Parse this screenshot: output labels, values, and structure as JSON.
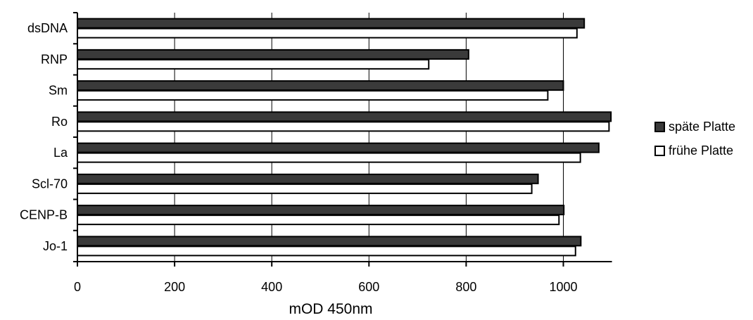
{
  "chart_data": {
    "type": "bar",
    "orientation": "horizontal",
    "categories": [
      "dsDNA",
      "RNP",
      "Sm",
      "Ro",
      "La",
      "Scl-70",
      "CENP-B",
      "Jo-1"
    ],
    "series": [
      {
        "name": "späte Platte",
        "color": "#3a3a3a",
        "values": [
          1043,
          805,
          1000,
          1098,
          1073,
          948,
          1001,
          1036
        ]
      },
      {
        "name": "frühe Platte",
        "color": "#ffffff",
        "values": [
          1028,
          723,
          968,
          1094,
          1035,
          935,
          991,
          1025
        ]
      }
    ],
    "xlabel": "mOD 450nm",
    "xticks": [
      0,
      200,
      400,
      600,
      800,
      1000
    ],
    "xlim": [
      0,
      1100
    ],
    "grid": "vertical",
    "legend_position": "right"
  }
}
